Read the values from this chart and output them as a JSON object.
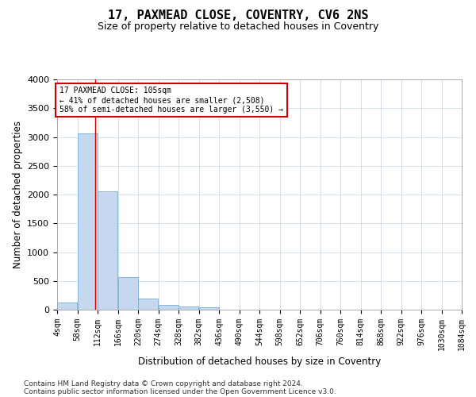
{
  "title": "17, PAXMEAD CLOSE, COVENTRY, CV6 2NS",
  "subtitle": "Size of property relative to detached houses in Coventry",
  "xlabel": "Distribution of detached houses by size in Coventry",
  "ylabel": "Number of detached properties",
  "bar_color": "#c5d8f0",
  "bar_edge_color": "#7aafd4",
  "background_color": "#ffffff",
  "grid_color": "#c8d4e8",
  "annotation_text": "17 PAXMEAD CLOSE: 105sqm\n← 41% of detached houses are smaller (2,508)\n58% of semi-detached houses are larger (3,550) →",
  "annotation_box_color": "#ffffff",
  "annotation_box_edge_color": "#cc0000",
  "vline_x": 105,
  "vline_color": "#cc0000",
  "footer_line1": "Contains HM Land Registry data © Crown copyright and database right 2024.",
  "footer_line2": "Contains public sector information licensed under the Open Government Licence v3.0.",
  "bin_edges": [
    4,
    58,
    112,
    166,
    220,
    274,
    328,
    382,
    436,
    490,
    544,
    598,
    652,
    706,
    760,
    814,
    868,
    922,
    976,
    1030,
    1084
  ],
  "bin_counts": [
    130,
    3060,
    2060,
    560,
    200,
    80,
    50,
    40,
    0,
    0,
    0,
    0,
    0,
    0,
    0,
    0,
    0,
    0,
    0,
    0
  ],
  "ylim": [
    0,
    4000
  ],
  "xlim": [
    4,
    1084
  ],
  "title_fontsize": 11,
  "subtitle_fontsize": 9,
  "tick_fontsize": 7,
  "label_fontsize": 8.5,
  "footer_fontsize": 6.5
}
